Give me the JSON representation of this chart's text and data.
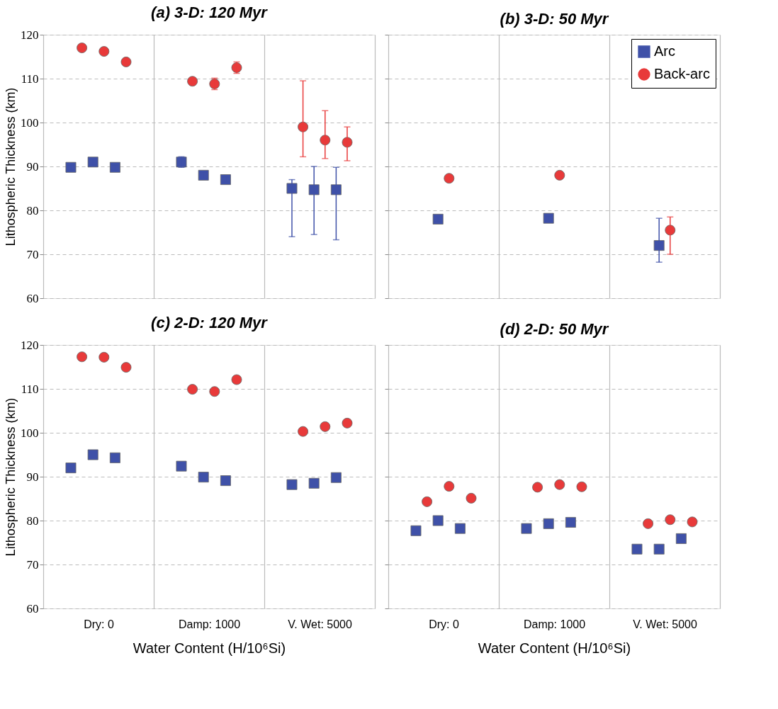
{
  "chart_data": [
    {
      "type": "scatter",
      "title": "(a) 3-D: 120 Myr",
      "ylabel": "Lithospheric Thickness (km)",
      "categories": [
        "Dry: 0",
        "Damp: 1000",
        "V. Wet: 5000"
      ],
      "ylim": [
        60,
        120
      ],
      "yticks": [
        60,
        70,
        80,
        90,
        100,
        110,
        120
      ],
      "grid": true,
      "legend": false,
      "tick_labels": "y",
      "series": [
        {
          "color": "#3f51a8",
          "marker": "square",
          "x": [
            "Dry: 0",
            "Dry: 0",
            "Dry: 0",
            "Damp: 1000",
            "Damp: 1000",
            "Damp: 1000",
            "V. Wet: 5000",
            "V. Wet: 5000",
            "V. Wet: 5000"
          ],
          "values": [
            89.8,
            91,
            89.8,
            91,
            88,
            87,
            85,
            84.7,
            84.7
          ],
          "errors": [
            0.6,
            0.7,
            0.6,
            1.2,
            0.8,
            0.6,
            [
              74,
              87
            ],
            [
              74.5,
              90
            ],
            [
              73.3,
              89.8
            ]
          ]
        },
        {
          "color": "#e83a3a",
          "marker": "circle",
          "x": [
            "Dry: 0",
            "Dry: 0",
            "Dry: 0",
            "Damp: 1000",
            "Damp: 1000",
            "Damp: 1000",
            "V. Wet: 5000",
            "V. Wet: 5000",
            "V. Wet: 5000"
          ],
          "values": [
            117,
            116.2,
            113.8,
            109.4,
            108.8,
            112.5,
            99,
            96,
            95.5
          ],
          "errors": [
            0.5,
            0.6,
            0.7,
            0.6,
            1.3,
            1.3,
            [
              92.2,
              109.5
            ],
            [
              91.8,
              102.7
            ],
            [
              91.3,
              99
            ]
          ]
        }
      ]
    },
    {
      "type": "scatter",
      "title": "(b) 3-D: 50 Myr",
      "categories": [
        "Dry: 0",
        "Damp: 1000",
        "V. Wet: 5000"
      ],
      "ylim": [
        60,
        120
      ],
      "yticks": [
        60,
        70,
        80,
        90,
        100,
        110,
        120
      ],
      "grid": true,
      "legend": "top right",
      "tick_labels": false,
      "series": [
        {
          "name": "Arc",
          "color": "#3f51a8",
          "marker": "square",
          "x": [
            "Dry: 0",
            "Damp: 1000",
            "V. Wet: 5000"
          ],
          "values": [
            78,
            78.2,
            72
          ],
          "errors": [
            0.6,
            0.6,
            [
              68.2,
              78.2
            ]
          ]
        },
        {
          "name": "Back-arc",
          "color": "#e83a3a",
          "marker": "circle",
          "x": [
            "Dry: 0",
            "Damp: 1000",
            "V. Wet: 5000"
          ],
          "values": [
            87.3,
            88,
            75.5
          ],
          "errors": [
            0.6,
            0.5,
            [
              70,
              78.5
            ]
          ]
        }
      ]
    },
    {
      "type": "scatter",
      "title": "(c) 2-D: 120 Myr",
      "xlabel": "Water Content (H/10⁶Si)",
      "ylabel": "Lithospheric Thickness (km)",
      "categories": [
        "Dry: 0",
        "Damp: 1000",
        "V. Wet: 5000"
      ],
      "ylim": [
        60,
        120
      ],
      "yticks": [
        60,
        70,
        80,
        90,
        100,
        110,
        120
      ],
      "grid": true,
      "legend": false,
      "series": [
        {
          "color": "#3f51a8",
          "marker": "square",
          "x": [
            "Dry: 0",
            "Dry: 0",
            "Dry: 0",
            "Damp: 1000",
            "Damp: 1000",
            "Damp: 1000",
            "V. Wet: 5000",
            "V. Wet: 5000",
            "V. Wet: 5000"
          ],
          "values": [
            92,
            95,
            94.3,
            92.4,
            89.9,
            89.1,
            88.2,
            88.5,
            89.8
          ]
        },
        {
          "color": "#e83a3a",
          "marker": "circle",
          "x": [
            "Dry: 0",
            "Dry: 0",
            "Dry: 0",
            "Damp: 1000",
            "Damp: 1000",
            "Damp: 1000",
            "V. Wet: 5000",
            "V. Wet: 5000",
            "V. Wet: 5000"
          ],
          "values": [
            117.3,
            117.2,
            114.9,
            109.9,
            109.4,
            112.1,
            100.3,
            101.4,
            102.2
          ]
        }
      ]
    },
    {
      "type": "scatter",
      "title": "(d) 2-D: 50 Myr",
      "xlabel": "Water Content (H/10⁶Si)",
      "categories": [
        "Dry: 0",
        "Damp: 1000",
        "V. Wet: 5000"
      ],
      "ylim": [
        60,
        120
      ],
      "yticks": [
        60,
        70,
        80,
        90,
        100,
        110,
        120
      ],
      "grid": true,
      "legend": false,
      "tick_labels": "x",
      "series": [
        {
          "color": "#3f51a8",
          "marker": "square",
          "x": [
            "Dry: 0",
            "Dry: 0",
            "Dry: 0",
            "Damp: 1000",
            "Damp: 1000",
            "Damp: 1000",
            "V. Wet: 5000",
            "V. Wet: 5000",
            "V. Wet: 5000"
          ],
          "values": [
            77.7,
            80,
            78.2,
            78.2,
            79.3,
            79.6,
            73.5,
            73.5,
            75.9
          ]
        },
        {
          "color": "#e83a3a",
          "marker": "circle",
          "x": [
            "Dry: 0",
            "Dry: 0",
            "Dry: 0",
            "Damp: 1000",
            "Damp: 1000",
            "Damp: 1000",
            "V. Wet: 5000",
            "V. Wet: 5000",
            "V. Wet: 5000"
          ],
          "values": [
            84.3,
            87.8,
            85.1,
            87.6,
            88.2,
            87.7,
            79.3,
            80.2,
            79.7
          ]
        }
      ]
    }
  ]
}
